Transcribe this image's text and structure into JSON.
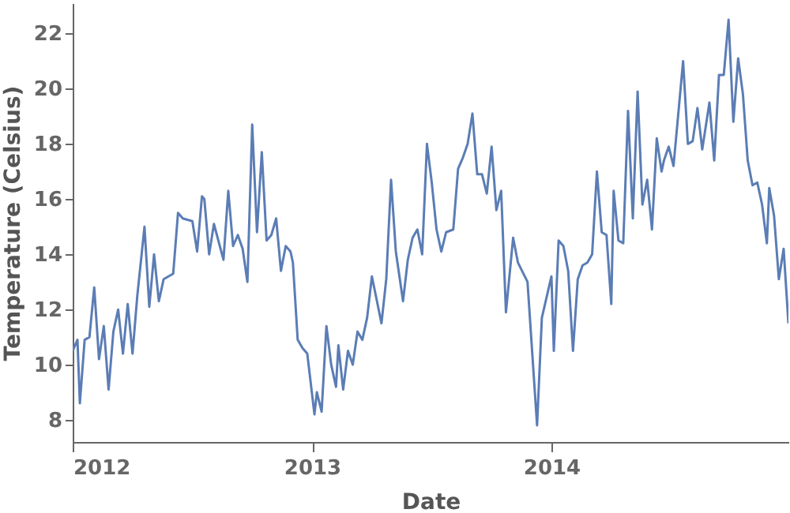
{
  "chart_data": {
    "type": "line",
    "xlabel": "Date",
    "ylabel": "Temperature (Celsius)",
    "x": [
      2012.0,
      2012.02,
      2012.03,
      2012.05,
      2012.07,
      2012.09,
      2012.11,
      2012.13,
      2012.15,
      2012.17,
      2012.19,
      2012.21,
      2012.23,
      2012.25,
      2012.27,
      2012.3,
      2012.32,
      2012.34,
      2012.36,
      2012.38,
      2012.42,
      2012.44,
      2012.46,
      2012.5,
      2012.52,
      2012.54,
      2012.55,
      2012.57,
      2012.59,
      2012.63,
      2012.65,
      2012.67,
      2012.69,
      2012.71,
      2012.73,
      2012.75,
      2012.77,
      2012.79,
      2012.81,
      2012.83,
      2012.85,
      2012.87,
      2012.89,
      2012.91,
      2012.92,
      2012.94,
      2012.96,
      2012.98,
      2013.01,
      2013.02,
      2013.04,
      2013.06,
      2013.08,
      2013.1,
      2013.11,
      2013.13,
      2013.15,
      2013.17,
      2013.19,
      2013.21,
      2013.23,
      2013.25,
      2013.29,
      2013.31,
      2013.33,
      2013.35,
      2013.38,
      2013.4,
      2013.42,
      2013.44,
      2013.46,
      2013.48,
      2013.5,
      2013.52,
      2013.54,
      2013.56,
      2013.59,
      2013.61,
      2013.63,
      2013.65,
      2013.67,
      2013.69,
      2013.71,
      2013.73,
      2013.75,
      2013.77,
      2013.79,
      2013.81,
      2013.84,
      2013.86,
      2013.9,
      2013.94,
      2013.96,
      2014.0,
      2014.01,
      2014.03,
      2014.05,
      2014.07,
      2014.09,
      2014.11,
      2014.13,
      2014.15,
      2014.17,
      2014.19,
      2014.21,
      2014.23,
      2014.25,
      2014.26,
      2014.28,
      2014.3,
      2014.32,
      2014.34,
      2014.36,
      2014.38,
      2014.4,
      2014.42,
      2014.44,
      2014.46,
      2014.47,
      2014.49,
      2014.51,
      2014.55,
      2014.57,
      2014.59,
      2014.61,
      2014.63,
      2014.66,
      2014.68,
      2014.7,
      2014.72,
      2014.74,
      2014.76,
      2014.78,
      2014.8,
      2014.82,
      2014.84,
      2014.86,
      2014.88,
      2014.9,
      2014.91,
      2014.93,
      2014.95,
      2014.97,
      2014.99
    ],
    "series": [
      {
        "color": "#5b7db5",
        "values": [
          10.5,
          10.9,
          8.6,
          10.9,
          11.0,
          12.8,
          10.2,
          11.4,
          9.1,
          11.2,
          12.0,
          10.4,
          12.2,
          10.4,
          12.5,
          15.0,
          12.1,
          14.0,
          12.3,
          13.1,
          13.3,
          15.5,
          15.3,
          15.2,
          14.1,
          16.1,
          16.0,
          14.0,
          15.1,
          13.8,
          16.3,
          14.3,
          14.7,
          14.2,
          13.0,
          18.7,
          14.8,
          17.7,
          14.5,
          14.7,
          15.3,
          13.4,
          14.3,
          14.1,
          13.7,
          10.9,
          10.6,
          10.4,
          8.2,
          9.0,
          8.3,
          11.4,
          10.0,
          9.2,
          10.7,
          9.1,
          10.5,
          10.0,
          11.2,
          10.9,
          11.7,
          13.2,
          11.5,
          13.1,
          16.7,
          14.1,
          12.3,
          13.8,
          14.6,
          14.9,
          14.0,
          18.0,
          16.6,
          14.9,
          14.1,
          14.8,
          14.9,
          17.1,
          17.5,
          18.0,
          19.1,
          16.9,
          16.9,
          16.2,
          17.9,
          15.6,
          16.3,
          11.9,
          14.6,
          13.7,
          13.0,
          7.8,
          11.7,
          13.2,
          10.5,
          14.5,
          14.3,
          13.4,
          10.5,
          13.1,
          13.6,
          13.7,
          14.0,
          17.0,
          14.8,
          14.7,
          12.2,
          16.3,
          14.5,
          14.4,
          19.2,
          15.3,
          19.9,
          15.8,
          16.7,
          14.9,
          18.2,
          17.0,
          17.4,
          17.9,
          17.2,
          21.0,
          18.0,
          18.1,
          19.3,
          17.8,
          19.5,
          17.4,
          20.5,
          20.5,
          22.5,
          18.8,
          21.1,
          19.8,
          17.4,
          16.5,
          16.6,
          15.8,
          14.4,
          16.4,
          15.4,
          13.1,
          14.2,
          11.5
        ]
      }
    ],
    "xlim": [
      2012,
      2014.99
    ],
    "xticks": [
      2012,
      2013,
      2014
    ],
    "ylim": [
      7.2,
      23.1
    ],
    "yticks": [
      8,
      10,
      12,
      14,
      16,
      18,
      20,
      22
    ],
    "grid": false,
    "marker": "none",
    "line_style": "solid"
  }
}
